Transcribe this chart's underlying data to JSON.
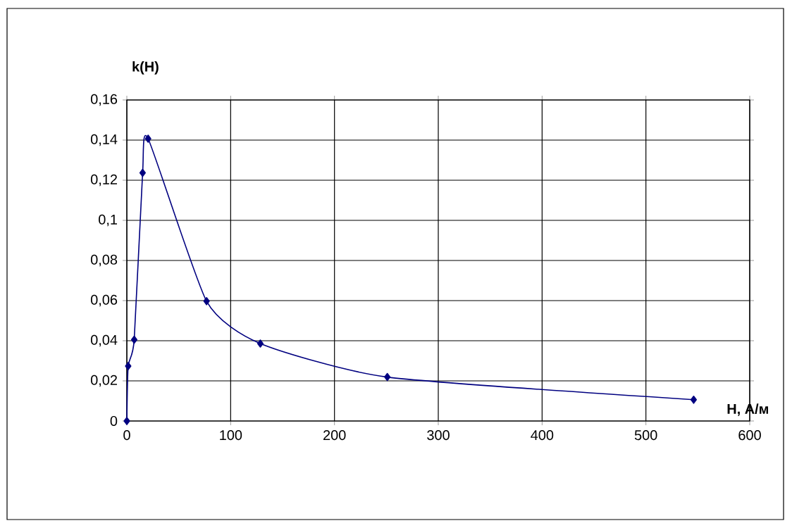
{
  "chart_data": {
    "type": "line",
    "xlabel": "H, А/м",
    "ylabel": "k(H)",
    "x": [
      0,
      1.3,
      7.1,
      15.2,
      20.5,
      76.8,
      128.6,
      250.9,
      546
    ],
    "series": [
      {
        "color": "#000080",
        "values": [
          0,
          0.0274,
          0.0405,
          0.1237,
          0.1407,
          0.0597,
          0.0386,
          0.0219,
          0.0106
        ]
      }
    ],
    "xlim": [
      0,
      600
    ],
    "xticks": [
      0,
      100,
      200,
      300,
      400,
      500,
      600
    ],
    "ylim": [
      0,
      0.16
    ],
    "yticks": [
      0,
      {
        "value": 0.02,
        "label": "0,02"
      },
      {
        "value": 0.04,
        "label": "0,04"
      },
      {
        "value": 0.06,
        "label": "0,06"
      },
      {
        "value": 0.08,
        "label": "0,08"
      },
      {
        "value": 0.1,
        "label": "0,1"
      },
      {
        "value": 0.12,
        "label": "0,12"
      },
      {
        "value": 0.14,
        "label": "0,14"
      },
      {
        "value": 0.16,
        "label": "0,16"
      }
    ],
    "grid": true,
    "marker": "diamond",
    "line_style": "solid"
  }
}
